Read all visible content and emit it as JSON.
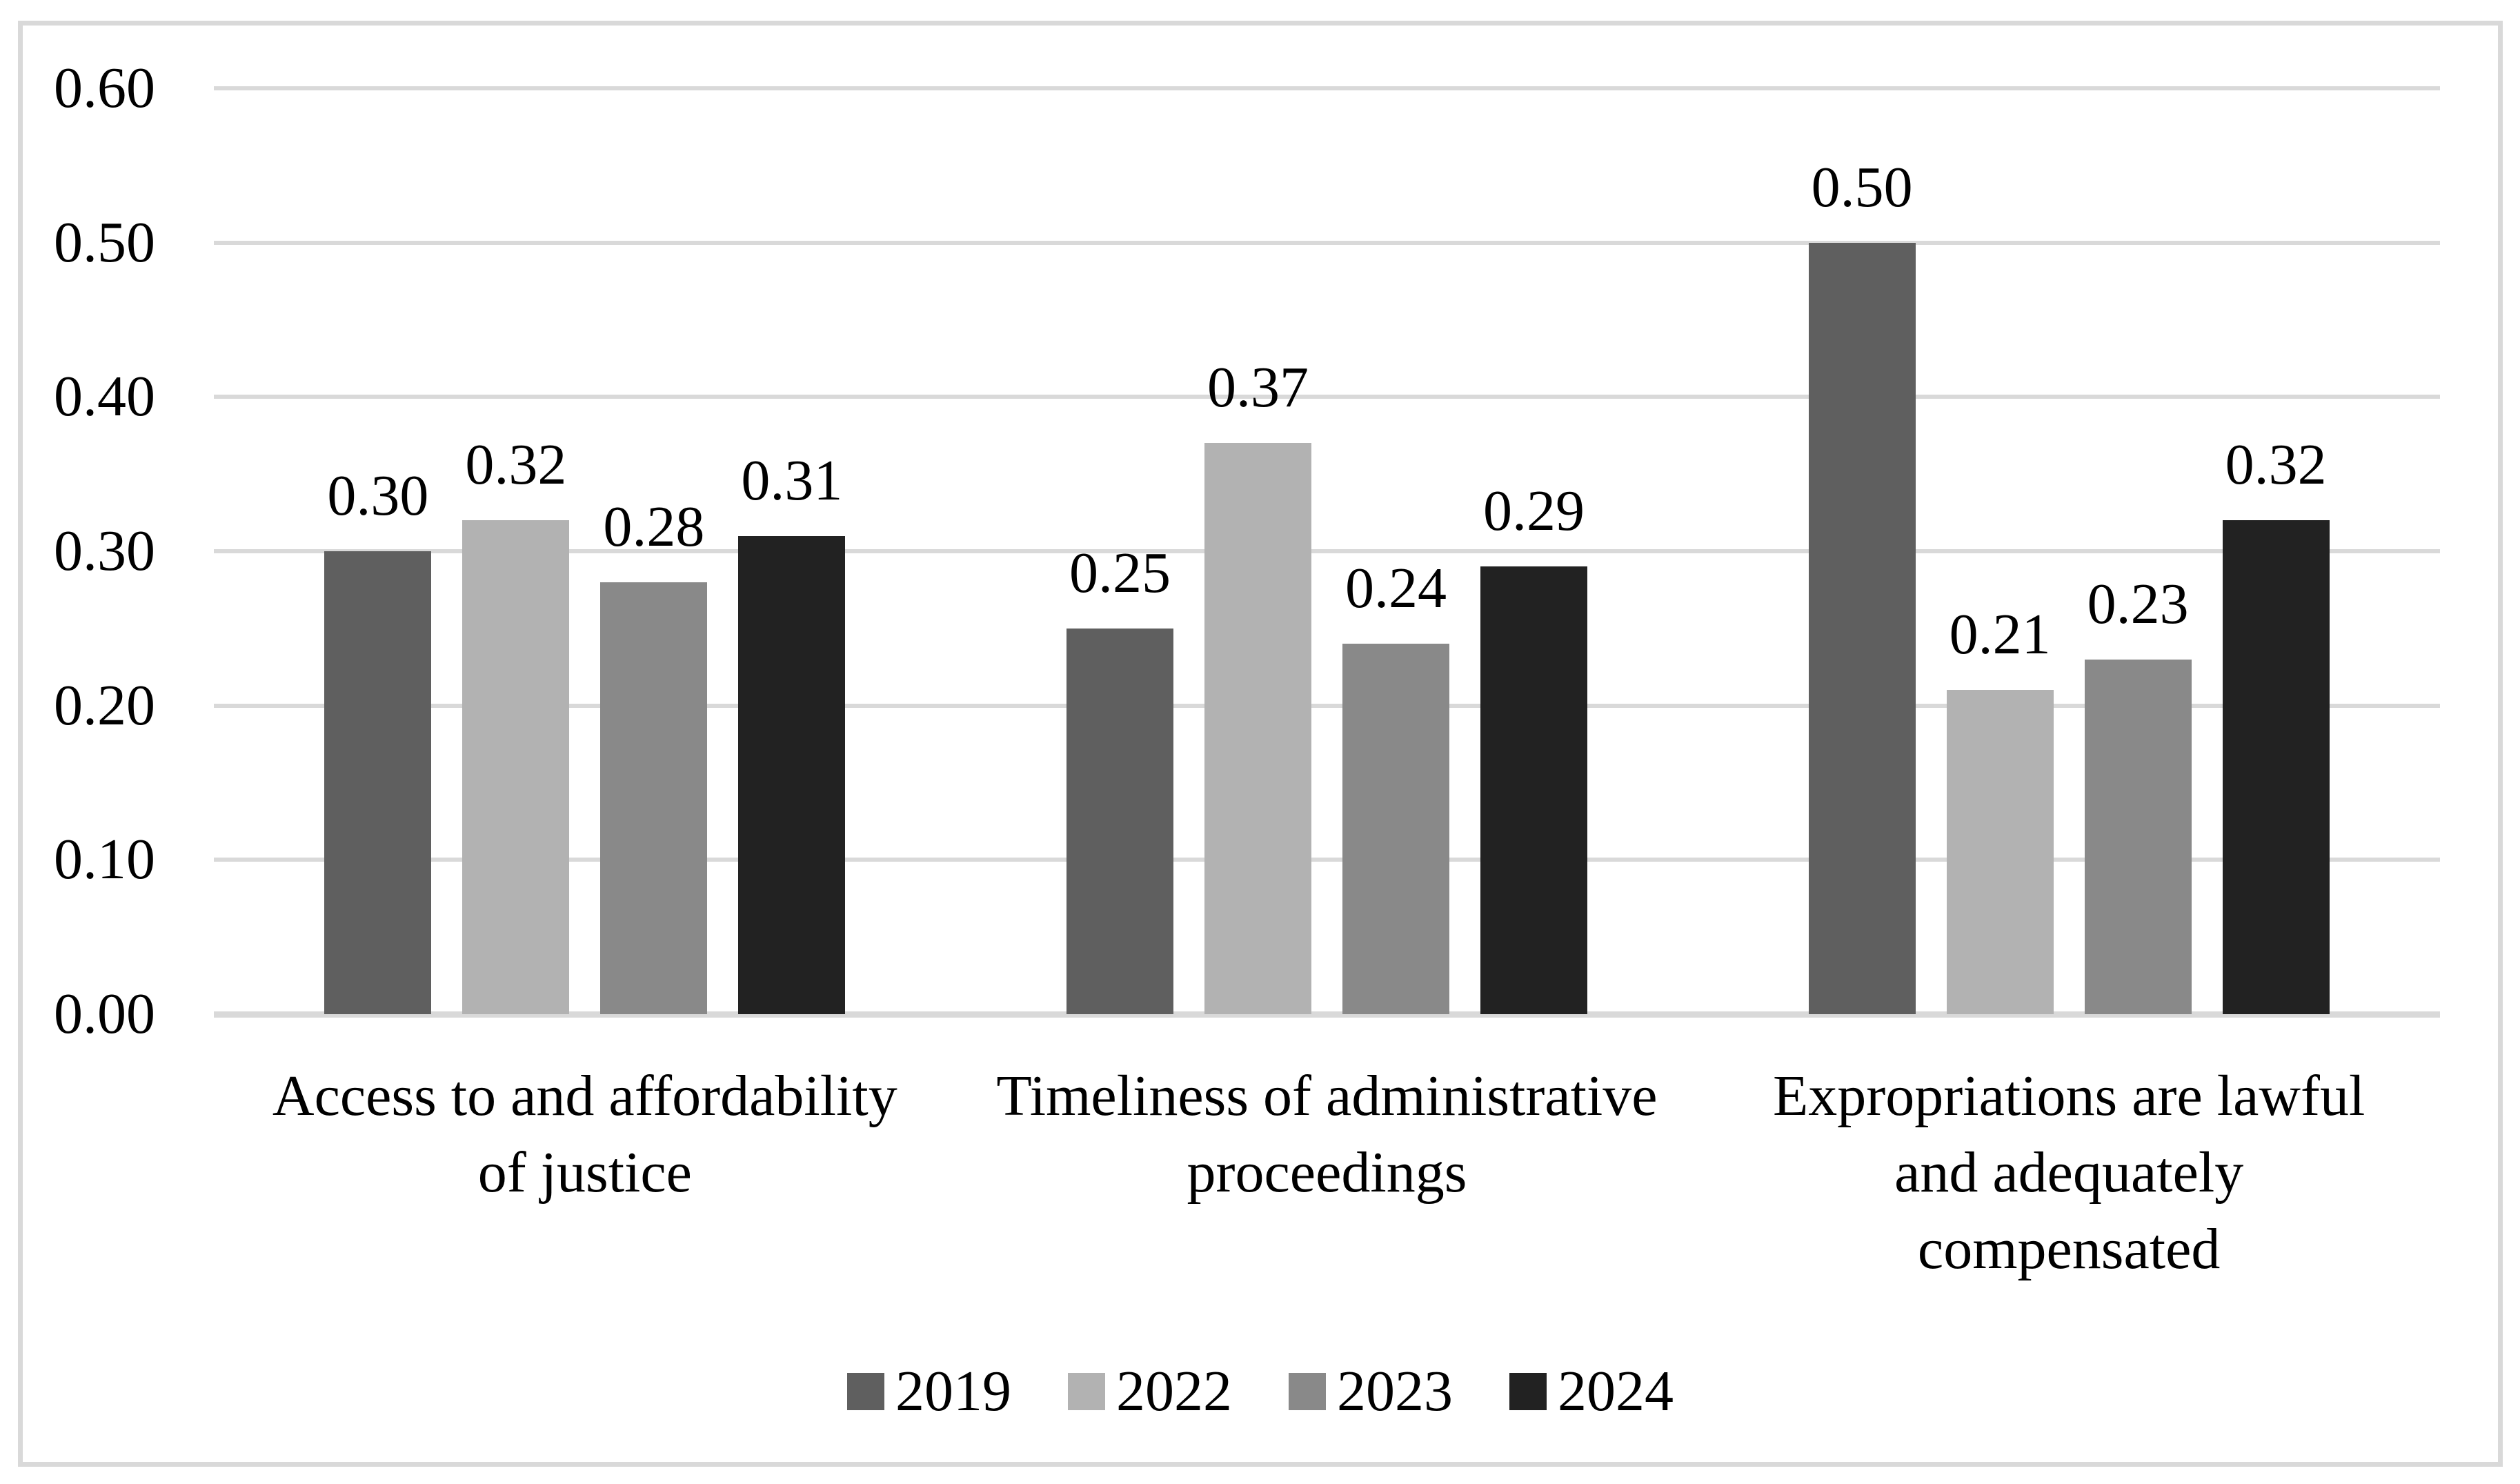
{
  "figure": {
    "background": "#ffffff",
    "frame_border_color": "#d9d9d9",
    "gridline_color": "#d9d9d9",
    "text_color": "#000000"
  },
  "chart_data": {
    "type": "bar",
    "title": "",
    "xlabel": "",
    "ylabel": "",
    "grid": true,
    "categories": [
      "Access to and affordability of justice",
      "Timeliness of administrative proceedings",
      "Expropriations are lawful and adequately compensated"
    ],
    "category_label_lines": [
      [
        "Access to and affordability",
        "of justice"
      ],
      [
        "Timeliness of administrative",
        "proceedings"
      ],
      [
        "Expropriations are lawful",
        "and adequately",
        "compensated"
      ]
    ],
    "series": [
      {
        "name": "2019",
        "color": "#5f5f5f",
        "values": [
          0.3,
          0.25,
          0.5
        ],
        "labels": [
          "0.30",
          "0.25",
          "0.50"
        ]
      },
      {
        "name": "2022",
        "color": "#b2b2b2",
        "values": [
          0.32,
          0.37,
          0.21
        ],
        "labels": [
          "0.32",
          "0.37",
          "0.21"
        ]
      },
      {
        "name": "2023",
        "color": "#898989",
        "values": [
          0.28,
          0.24,
          0.23
        ],
        "labels": [
          "0.28",
          "0.24",
          "0.23"
        ]
      },
      {
        "name": "2024",
        "color": "#222222",
        "values": [
          0.31,
          0.29,
          0.32
        ],
        "labels": [
          "0.31",
          "0.29",
          "0.32"
        ]
      }
    ],
    "y_axis": {
      "min": 0.0,
      "max": 0.6,
      "step": 0.1,
      "tick_labels": [
        "0.00",
        "0.10",
        "0.20",
        "0.30",
        "0.40",
        "0.50",
        "0.60"
      ]
    },
    "legend": {
      "position": "bottom",
      "entries": [
        "2019",
        "2022",
        "2023",
        "2024"
      ]
    }
  }
}
